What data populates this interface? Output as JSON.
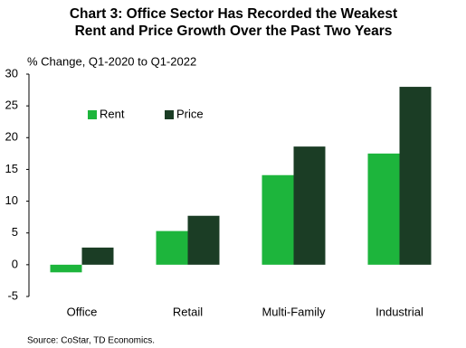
{
  "chart_data": {
    "type": "bar",
    "title": [
      "Chart 3: Office Sector Has Recorded the Weakest",
      "Rent and Price Growth Over the Past Two Years"
    ],
    "subtitle": "% Change, Q1-2020 to Q1-2022",
    "source": "Source: CoStar, TD Economics.",
    "categories": [
      "Office",
      "Retail",
      "Multi-Family",
      "Industrial"
    ],
    "series": [
      {
        "name": "Rent",
        "color": "#1db53c",
        "values": [
          -1.2,
          5.3,
          14.1,
          17.5
        ]
      },
      {
        "name": "Price",
        "color": "#1b3d25",
        "values": [
          2.7,
          7.7,
          18.6,
          28.0
        ]
      }
    ],
    "ylim": [
      -5,
      30
    ],
    "yticks": [
      -5,
      0,
      5,
      10,
      15,
      20,
      25,
      30
    ],
    "legend": "upper left"
  }
}
